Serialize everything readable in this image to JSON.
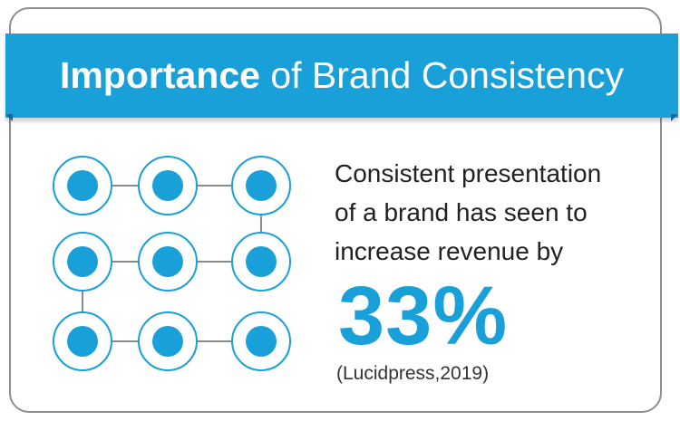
{
  "header": {
    "title_strong": "Importance",
    "title_rest": " of Brand Consistency"
  },
  "body": {
    "statement_line1": "Consistent presentation",
    "statement_line2": "of a brand has seen to",
    "statement_line3": "increase revenue by",
    "stat_value": "33%",
    "source": "(Lucidpress,2019)"
  },
  "illustration": {
    "icon": "connected-dots-grid-icon",
    "rows": 3,
    "columns": 3
  },
  "colors": {
    "accent": "#1aa0d8",
    "border": "#8f8f8f",
    "text": "#222222"
  }
}
